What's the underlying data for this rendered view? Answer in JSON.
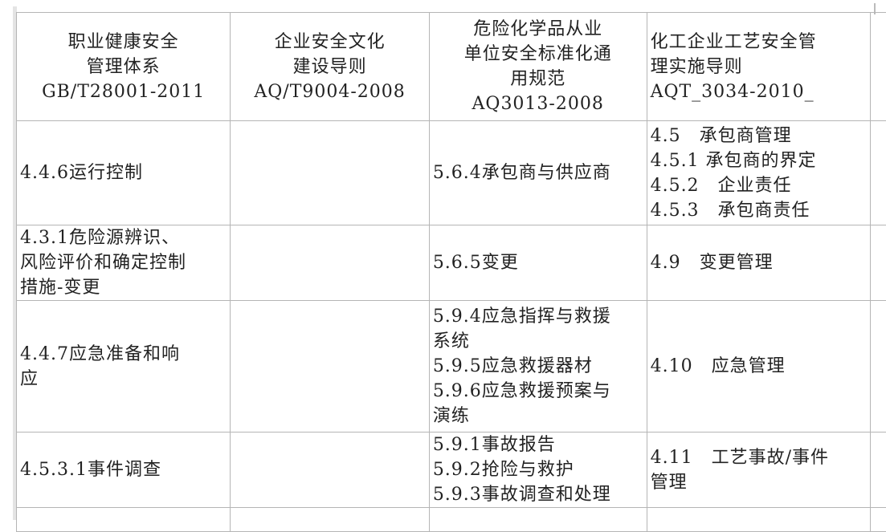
{
  "headers": [
    "职业健康安全\n管理体系\nGB/T28001-2011",
    "企业安全文化\n建设导则\nAQ/T9004-2008",
    "危险化学品从业\n单位安全标准化通\n用规范\nAQ3013-2008",
    "化工企业工艺安全管\n理实施导则\nAQT_3034-2010_"
  ],
  "rows": [
    [
      "4.4.6运行控制",
      "",
      "5.6.4承包商与供应商",
      "4.5　承包商管理\n4.5.1 承包商的界定\n4.5.2　企业责任\n4.5.3　承包商责任"
    ],
    [
      "4.3.1危险源辨识、\n风险评价和确定控制\n措施-变更",
      "",
      "5.6.5变更",
      "4.9　变更管理"
    ],
    [
      "4.4.7应急准备和响\n应",
      "",
      "5.9.4应急指挥与救援\n系统\n5.9.5应急救援器材\n5.9.6应急救援预案与\n演练",
      "4.10　应急管理"
    ],
    [
      "4.5.3.1事件调查",
      "",
      "5.9.1事故报告\n5.9.2抢险与救护\n5.9.3事故调查和处理",
      "4.11　工艺事故/事件\n管理"
    ]
  ]
}
